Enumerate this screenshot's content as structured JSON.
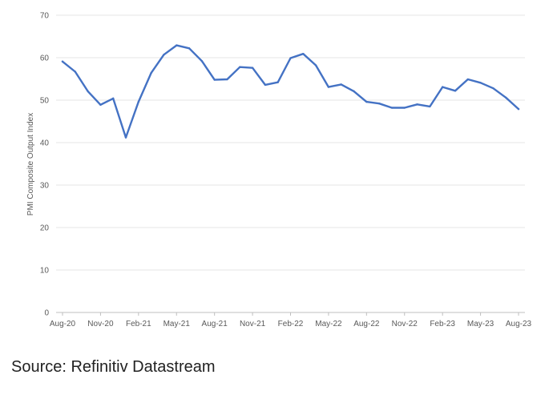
{
  "chart_data": {
    "type": "line",
    "title": "",
    "xlabel": "",
    "ylabel": "PMI Composite Output Index",
    "ylim": [
      0,
      70
    ],
    "yticks": [
      0,
      10,
      20,
      30,
      40,
      50,
      60,
      70
    ],
    "grid": true,
    "legend": "none",
    "x": [
      "Aug-20",
      "Sep-20",
      "Oct-20",
      "Nov-20",
      "Dec-20",
      "Jan-21",
      "Feb-21",
      "Mar-21",
      "Apr-21",
      "May-21",
      "Jun-21",
      "Jul-21",
      "Aug-21",
      "Sep-21",
      "Oct-21",
      "Nov-21",
      "Dec-21",
      "Jan-22",
      "Feb-22",
      "Mar-22",
      "Apr-22",
      "May-22",
      "Jun-22",
      "Jul-22",
      "Aug-22",
      "Sep-22",
      "Oct-22",
      "Nov-22",
      "Dec-22",
      "Jan-23",
      "Feb-23",
      "Mar-23",
      "Apr-23",
      "May-23",
      "Jun-23",
      "Jul-23",
      "Aug-23"
    ],
    "xtick_labels": [
      "Aug-20",
      "Nov-20",
      "Feb-21",
      "May-21",
      "Aug-21",
      "Nov-21",
      "Feb-22",
      "May-22",
      "Aug-22",
      "Nov-22",
      "Feb-23",
      "May-23",
      "Aug-23"
    ],
    "series": [
      {
        "values": [
          59.1,
          56.7,
          52.1,
          48.9,
          50.4,
          41.2,
          49.6,
          56.4,
          60.7,
          62.9,
          62.2,
          59.2,
          54.8,
          54.9,
          57.8,
          57.6,
          53.6,
          54.2,
          59.9,
          60.9,
          58.2,
          53.1,
          53.7,
          52.1,
          49.6,
          49.2,
          48.2,
          48.2,
          49.0,
          48.5,
          53.1,
          52.2,
          54.9,
          54.1,
          52.8,
          50.6,
          47.9
        ],
        "color": "#4472c4"
      }
    ]
  },
  "source": "Source: Refinitiv Datastream"
}
